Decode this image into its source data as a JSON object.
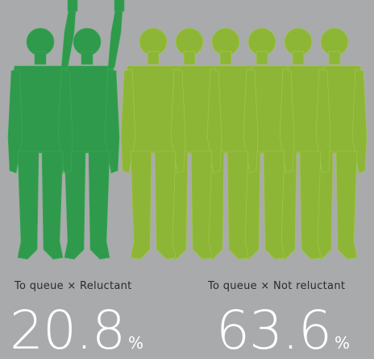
{
  "stats": [
    {
      "label": "To queue × Reluctant",
      "value": "20.8",
      "unit": "%"
    },
    {
      "label": "To queue × Not reluctant",
      "value": "63.6",
      "unit": "%"
    }
  ]
}
